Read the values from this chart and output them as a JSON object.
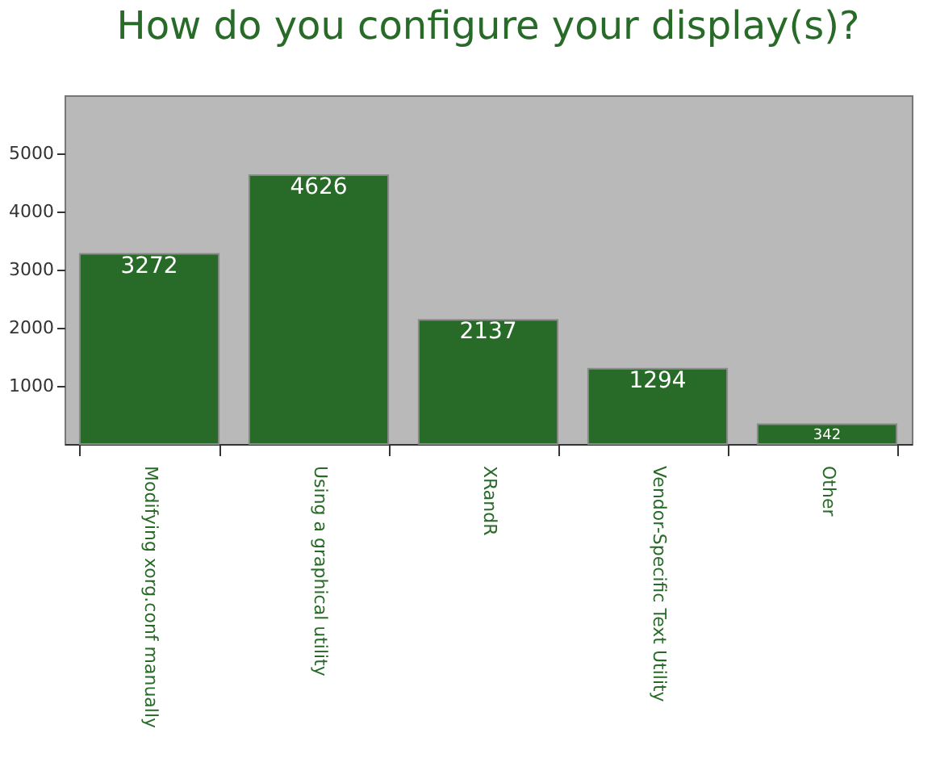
{
  "chart_data": {
    "type": "bar",
    "title": "How do you configure your display(s)?",
    "categories": [
      "Modifying xorg.conf manually",
      "Using a graphical utility",
      "XRandR",
      "Vendor-Specific Text Utility",
      "Other"
    ],
    "values": [
      3272,
      4626,
      2137,
      1294,
      342
    ],
    "color": "#286a28",
    "ylim": [
      0,
      6000
    ],
    "yticks": [
      1000,
      2000,
      3000,
      4000,
      5000
    ],
    "grid": false,
    "data_labels": true
  }
}
